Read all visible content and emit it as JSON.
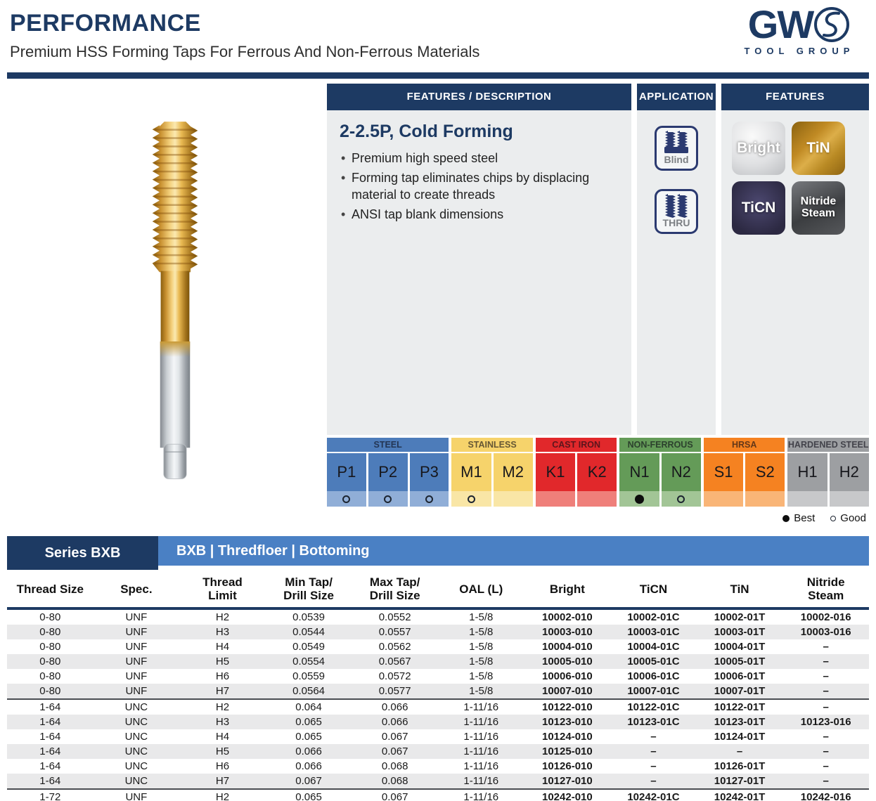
{
  "header": {
    "title": "PERFORMANCE",
    "subtitle": "Premium HSS Forming Taps For Ferrous And Non-Ferrous Materials",
    "logo": {
      "gw": "GW",
      "tool_group": "TOOL GROUP"
    },
    "accent_color": "#1d3a63"
  },
  "features_description": {
    "header": "FEATURES / DESCRIPTION",
    "heading": "2-2.5P, Cold Forming",
    "bullets": [
      "Premium high speed steel",
      "Forming tap eliminates chips by displacing material to create threads",
      "ANSI tap blank dimensions"
    ]
  },
  "application": {
    "header": "APPLICATION",
    "items": [
      {
        "label": "Blind",
        "icon": "blind-hole-icon"
      },
      {
        "label": "THRU",
        "icon": "thru-hole-icon"
      }
    ]
  },
  "features_panel": {
    "header": "FEATURES",
    "badges": [
      {
        "label": "Bright",
        "style": "bright",
        "color": "#d9dadc"
      },
      {
        "label": "TiN",
        "style": "tin",
        "color": "#c08a24"
      },
      {
        "label": "TiCN",
        "style": "ticn",
        "color": "#39355a"
      },
      {
        "label": "Nitride Steam",
        "style": "nitride",
        "color": "#4a4c4f"
      }
    ]
  },
  "material_chart": {
    "groups": [
      {
        "name": "STEEL",
        "color": "#4d7cba",
        "light": "#90aed7",
        "cells": [
          {
            "code": "P1",
            "mark": "good"
          },
          {
            "code": "P2",
            "mark": "good"
          },
          {
            "code": "P3",
            "mark": "good"
          }
        ]
      },
      {
        "name": "STAINLESS",
        "color": "#f6d36b",
        "light": "#f9e6a6",
        "cells": [
          {
            "code": "M1",
            "mark": "good"
          },
          {
            "code": "M2",
            "mark": "none"
          }
        ]
      },
      {
        "name": "CAST IRON",
        "color": "#e1282b",
        "light": "#ef7f7a",
        "cells": [
          {
            "code": "K1",
            "mark": "none"
          },
          {
            "code": "K2",
            "mark": "none"
          }
        ]
      },
      {
        "name": "NON-FERROUS",
        "color": "#649b58",
        "light": "#a2c596",
        "cells": [
          {
            "code": "N1",
            "mark": "best"
          },
          {
            "code": "N2",
            "mark": "good"
          }
        ]
      },
      {
        "name": "HRSA",
        "color": "#f58221",
        "light": "#f9b577",
        "cells": [
          {
            "code": "S1",
            "mark": "none"
          },
          {
            "code": "S2",
            "mark": "none"
          }
        ]
      },
      {
        "name": "HARDENED STEEL",
        "color": "#9d9fa2",
        "light": "#c7c8ca",
        "cells": [
          {
            "code": "H1",
            "mark": "none"
          },
          {
            "code": "H2",
            "mark": "none"
          }
        ]
      }
    ],
    "legend": [
      {
        "mark": "best",
        "label": "Best"
      },
      {
        "mark": "good",
        "label": "Good"
      }
    ]
  },
  "table": {
    "series_label": "Series BXB",
    "series_title": "BXB | Thredfloer | Bottoming",
    "band_color": "#4a80c4",
    "columns": [
      "Thread Size",
      "Spec.",
      "Thread\nLimit",
      "Min Tap/\nDrill Size",
      "Max Tap/\nDrill Size",
      "OAL (L)",
      "Bright",
      "TiCN",
      "TiN",
      "Nitride\nSteam"
    ],
    "row_groups": [
      {
        "rows": [
          [
            "0-80",
            "UNF",
            "H2",
            "0.0539",
            "0.0552",
            "1-5/8",
            "10002-010",
            "10002-01C",
            "10002-01T",
            "10002-016"
          ],
          [
            "0-80",
            "UNF",
            "H3",
            "0.0544",
            "0.0557",
            "1-5/8",
            "10003-010",
            "10003-01C",
            "10003-01T",
            "10003-016"
          ],
          [
            "0-80",
            "UNF",
            "H4",
            "0.0549",
            "0.0562",
            "1-5/8",
            "10004-010",
            "10004-01C",
            "10004-01T",
            "–"
          ],
          [
            "0-80",
            "UNF",
            "H5",
            "0.0554",
            "0.0567",
            "1-5/8",
            "10005-010",
            "10005-01C",
            "10005-01T",
            "–"
          ],
          [
            "0-80",
            "UNF",
            "H6",
            "0.0559",
            "0.0572",
            "1-5/8",
            "10006-010",
            "10006-01C",
            "10006-01T",
            "–"
          ],
          [
            "0-80",
            "UNF",
            "H7",
            "0.0564",
            "0.0577",
            "1-5/8",
            "10007-010",
            "10007-01C",
            "10007-01T",
            "–"
          ]
        ]
      },
      {
        "rows": [
          [
            "1-64",
            "UNC",
            "H2",
            "0.064",
            "0.066",
            "1-11/16",
            "10122-010",
            "10122-01C",
            "10122-01T",
            "–"
          ],
          [
            "1-64",
            "UNC",
            "H3",
            "0.065",
            "0.066",
            "1-11/16",
            "10123-010",
            "10123-01C",
            "10123-01T",
            "10123-016"
          ],
          [
            "1-64",
            "UNC",
            "H4",
            "0.065",
            "0.067",
            "1-11/16",
            "10124-010",
            "–",
            "10124-01T",
            "–"
          ],
          [
            "1-64",
            "UNC",
            "H5",
            "0.066",
            "0.067",
            "1-11/16",
            "10125-010",
            "–",
            "–",
            "–"
          ],
          [
            "1-64",
            "UNC",
            "H6",
            "0.066",
            "0.068",
            "1-11/16",
            "10126-010",
            "–",
            "10126-01T",
            "–"
          ],
          [
            "1-64",
            "UNC",
            "H7",
            "0.067",
            "0.068",
            "1-11/16",
            "10127-010",
            "–",
            "10127-01T",
            "–"
          ]
        ]
      },
      {
        "rows": [
          [
            "1-72",
            "UNF",
            "H2",
            "0.065",
            "0.067",
            "1-11/16",
            "10242-010",
            "10242-01C",
            "10242-01T",
            "10242-016"
          ]
        ]
      }
    ]
  }
}
